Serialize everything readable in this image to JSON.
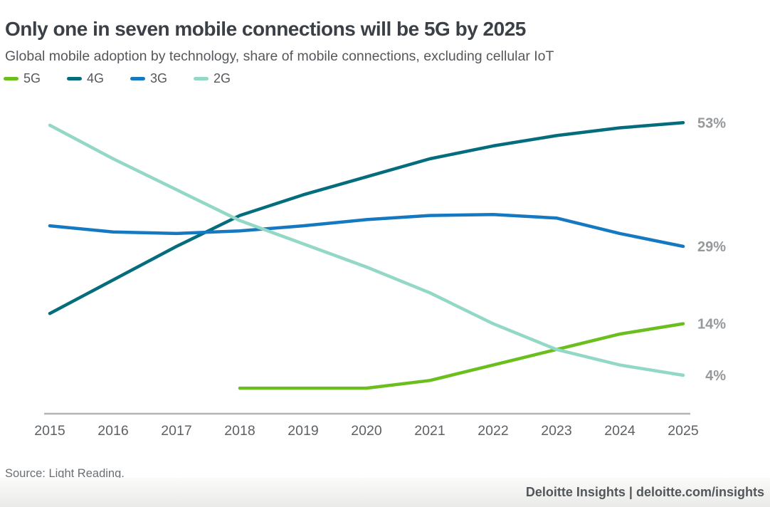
{
  "header": {
    "title": "Only one in seven mobile connections will be 5G by 2025",
    "subtitle": "Global mobile adoption by technology, share of mobile connections, excluding cellular IoT"
  },
  "chart_data": {
    "type": "line",
    "title": "Only one in seven mobile connections will be 5G by 2025",
    "x": [
      2015,
      2016,
      2017,
      2018,
      2019,
      2020,
      2021,
      2022,
      2023,
      2024,
      2025
    ],
    "xlabel": "",
    "ylabel": "share of mobile connections (%)",
    "ylim": [
      0,
      57
    ],
    "grid": false,
    "legend_position": "top-left",
    "unit": "%",
    "series": [
      {
        "name": "5G",
        "color": "#6abf1d",
        "end_label": "14%",
        "values": [
          null,
          null,
          null,
          1.5,
          1.5,
          1.5,
          3,
          6,
          9,
          12,
          14
        ]
      },
      {
        "name": "4G",
        "color": "#046d7d",
        "end_label": "53%",
        "values": [
          16,
          22.5,
          29,
          35,
          39,
          42.5,
          46,
          48.5,
          50.5,
          52,
          53
        ]
      },
      {
        "name": "3G",
        "color": "#1579c2",
        "end_label": "29%",
        "values": [
          33,
          31.8,
          31.5,
          32,
          33,
          34.2,
          35,
          35.2,
          34.5,
          31.5,
          29
        ]
      },
      {
        "name": "2G",
        "color": "#93d8c6",
        "end_label": "4%",
        "values": [
          52.5,
          46,
          40,
          34,
          29.5,
          25,
          20,
          14,
          9,
          6,
          4
        ]
      }
    ],
    "axis_color": "#b4b4b4",
    "tick_label_color": "#5d6165",
    "end_label_color": "#95999c"
  },
  "footer": {
    "source": "Source: Light Reading.",
    "brand": "Deloitte Insights | deloitte.com/insights"
  }
}
